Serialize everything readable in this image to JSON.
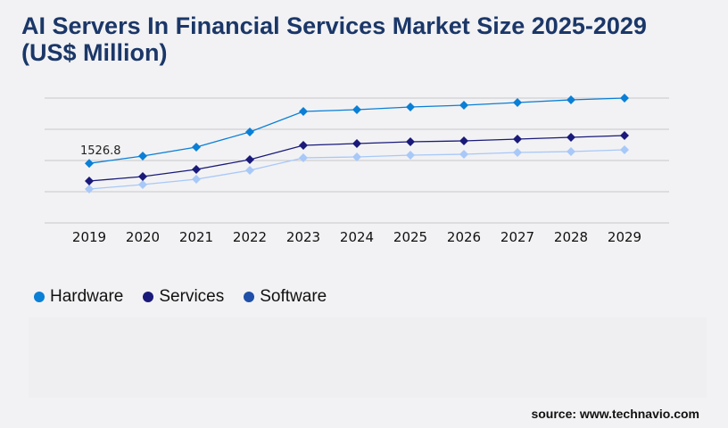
{
  "title": "AI Servers In Financial Services Market Size 2025-2029 (US$ Million)",
  "source": "source: www.technavio.com",
  "chart_data": {
    "type": "line",
    "title": "AI Servers In Financial Services Market Size 2025-2029 (US$ Million)",
    "x": [
      "2019",
      "2020",
      "2021",
      "2022",
      "2023",
      "2024",
      "2025",
      "2026",
      "2027",
      "2028",
      "2029"
    ],
    "ylim": [
      0,
      3200
    ],
    "grid": true,
    "legend": "bottom-left",
    "annotations": [
      {
        "series": "Hardware",
        "x": "2019",
        "label": "1526.8"
      }
    ],
    "series": [
      {
        "name": "Hardware",
        "color": "#0a7fd6",
        "marker_color": "#0a7fd6",
        "values": [
          1526.8,
          1714,
          1943,
          2331,
          2857,
          2903,
          2971,
          3017,
          3086,
          3154,
          3200
        ]
      },
      {
        "name": "Services",
        "color": "#1a1a7a",
        "marker_color": "#1a1a7a",
        "values": [
          1074,
          1189,
          1371,
          1623,
          1989,
          2034,
          2080,
          2103,
          2149,
          2194,
          2240
        ]
      },
      {
        "name": "Software",
        "color": "#a8c8f8",
        "marker_color": "#1f4fa8",
        "values": [
          869,
          983,
          1120,
          1349,
          1669,
          1691,
          1737,
          1760,
          1806,
          1829,
          1874
        ]
      }
    ]
  }
}
